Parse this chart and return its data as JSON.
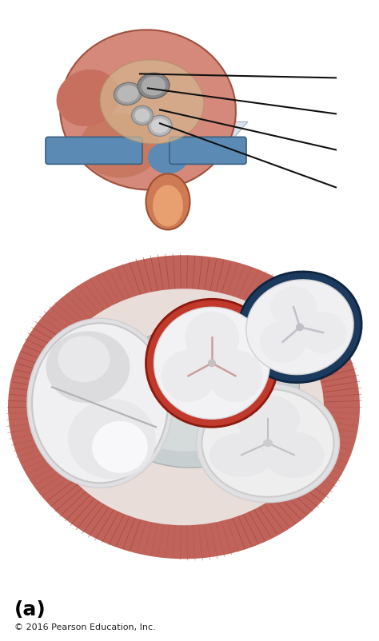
{
  "bg_color": "#ffffff",
  "label_a": "(a)",
  "copyright": "© 2016 Pearson Education, Inc.",
  "muscle_outer_color": "#c0635a",
  "muscle_mid_color": "#b85248",
  "muscle_dark": "#9e3a30",
  "muscle_light": "#d4887c",
  "white_valve": "#e8e8ea",
  "white_valve2": "#f2f2f4",
  "gray_fibrous": "#b8bec0",
  "red_ring": "#c0392b",
  "blue_ring_dark": "#1a3a5c",
  "blue_ring_mid": "#2c5f8a",
  "line_color": "#111111",
  "heart_salmon": "#d4897a",
  "heart_dark": "#a05040",
  "aorta_color": "#cd7a55",
  "pulm_blue": "#5b8ab5",
  "plane_color": "#ccd9e8"
}
